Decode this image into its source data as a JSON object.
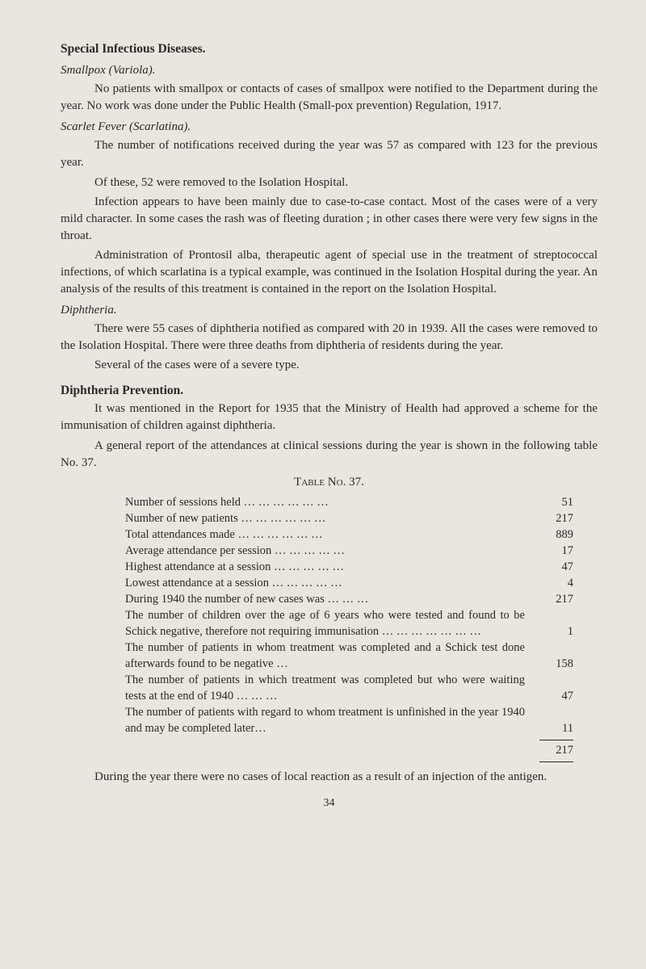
{
  "page": {
    "background_color": "#e8e6df",
    "text_color": "#2a2a2a",
    "font_family": "Georgia, serif",
    "page_number": "34"
  },
  "sections": {
    "special": {
      "heading": "Special Infectious Diseases."
    },
    "smallpox": {
      "heading": "Smallpox (Variola).",
      "para1": "No patients with smallpox or contacts of cases of smallpox were notified to the Department during the year. No work was done under the Public Health (Small-pox prevention) Regulation, 1917."
    },
    "scarlet": {
      "heading": "Scarlet Fever (Scarlatina).",
      "para1": "The number of notifications received during the year was 57 as compared with 123 for the previous year.",
      "para2": "Of these, 52 were removed to the Isolation Hospital.",
      "para3": "Infection appears to have been mainly due to case-to-case contact. Most of the cases were of a very mild character. In some cases the rash was of fleeting duration ; in other cases there were very few signs in the throat.",
      "para4": "Administration of Prontosil alba, therapeutic agent of special use in the treatment of streptococcal infections, of which scarlatina is a typical example, was continued in the Isolation Hospital during the year. An analysis of the results of this treatment is contained in the report on the Isolation Hospital."
    },
    "diphtheria": {
      "heading": "Diphtheria.",
      "para1": "There were 55 cases of diphtheria notified as compared with 20 in 1939. All the cases were removed to the Isolation Hospital. There were three deaths from diphtheria of residents during the year.",
      "para2": "Several of the cases were of a severe type."
    },
    "prevention": {
      "heading": "Diphtheria Prevention.",
      "para1": "It was mentioned in the Report for 1935 that the Ministry of Health had approved a scheme for the immunisation of children against diphtheria.",
      "para2": "A general report of the attendances at clinical sessions during the year is shown in the following table No. 37."
    },
    "after_table": {
      "para1": "During the year there were no cases of local reaction as a result of an injection of the antigen."
    }
  },
  "table37": {
    "title": "Table No. 37.",
    "rows": [
      {
        "label": "Number of sessions held …    …    …    …    …    …",
        "value": "51"
      },
      {
        "label": "Number of new patients …    …    …    …    …    …",
        "value": "217"
      },
      {
        "label": "Total attendances made …    …    …    …    …    …",
        "value": "889"
      },
      {
        "label": "Average attendance per session …    …    …    …    …",
        "value": "17"
      },
      {
        "label": "Highest attendance at a session …    …    …    …    …",
        "value": "47"
      },
      {
        "label": "Lowest attendance at a session …    …    …    …    …",
        "value": "4"
      },
      {
        "label": "During 1940 the number of new cases was …    …    …",
        "value": "217"
      },
      {
        "label": "The number of children over the age of 6 years who were tested and found to be Schick negative, therefore not requiring immunisation     …    …    …    …    …    …    …",
        "value": "1",
        "multi": true
      },
      {
        "label": "The number of patients in whom treatment was completed and a Schick test done afterwards found to be negative       …",
        "value": "158",
        "multi": true
      },
      {
        "label": "The number of patients in which treatment was completed but who were waiting tests at the end of 1940 …    …    …",
        "value": "47",
        "multi": true
      },
      {
        "label": "The number of patients with regard to whom treatment is unfinished in the year 1940 and may be completed later…",
        "value": "11",
        "multi": true
      }
    ],
    "total": "217"
  }
}
